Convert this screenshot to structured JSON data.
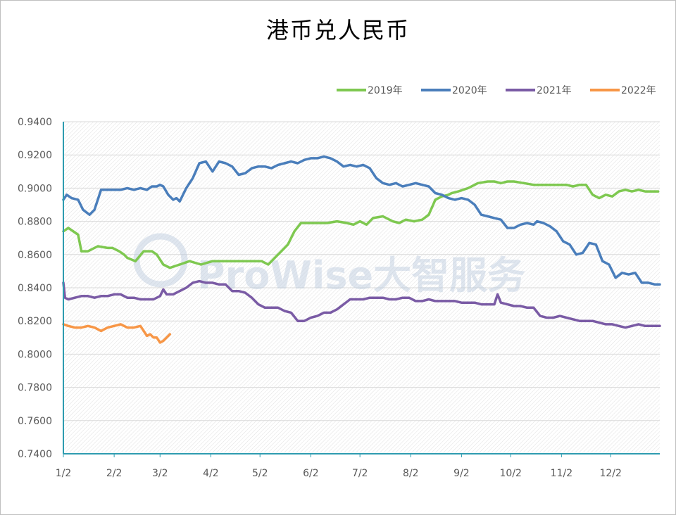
{
  "chart_data": {
    "type": "line",
    "title": "港币兑人民币",
    "xlabel": "",
    "ylabel": "",
    "ylim": [
      0.74,
      0.94
    ],
    "y_ticks": [
      "0.9400",
      "0.9200",
      "0.9000",
      "0.8800",
      "0.8600",
      "0.8400",
      "0.8200",
      "0.8000",
      "0.7800",
      "0.7600",
      "0.7400"
    ],
    "x_ticks": [
      "1/2",
      "2/2",
      "3/2",
      "4/2",
      "5/2",
      "6/2",
      "7/2",
      "8/2",
      "9/2",
      "10/2",
      "11/2",
      "12/2"
    ],
    "x_unit": "day of year",
    "x_range": [
      1,
      365
    ],
    "legend_position": "top-right",
    "grid": true,
    "watermark": "ProWise大智服务",
    "series": [
      {
        "name": "2019年",
        "color": "#7ec850",
        "x": [
          1,
          4,
          10,
          12,
          16,
          22,
          28,
          31,
          35,
          38,
          40,
          45,
          50,
          55,
          58,
          62,
          66,
          72,
          78,
          85,
          92,
          100,
          108,
          112,
          118,
          122,
          126,
          130,
          134,
          138,
          142,
          146,
          150,
          156,
          162,
          168,
          174,
          178,
          182,
          186,
          190,
          196,
          202,
          206,
          210,
          215,
          220,
          224,
          228,
          232,
          236,
          238,
          242,
          248,
          254,
          260,
          264,
          268,
          272,
          276,
          282,
          288,
          292,
          298,
          304,
          308,
          312,
          316,
          320,
          324,
          328,
          332,
          336,
          340,
          344,
          348,
          352,
          356,
          360,
          364
        ],
        "values": [
          0.874,
          0.876,
          0.872,
          0.862,
          0.862,
          0.865,
          0.864,
          0.864,
          0.862,
          0.86,
          0.858,
          0.856,
          0.862,
          0.862,
          0.86,
          0.854,
          0.852,
          0.854,
          0.856,
          0.854,
          0.856,
          0.856,
          0.856,
          0.856,
          0.856,
          0.856,
          0.854,
          0.858,
          0.862,
          0.866,
          0.874,
          0.879,
          0.879,
          0.879,
          0.879,
          0.88,
          0.879,
          0.878,
          0.88,
          0.878,
          0.882,
          0.883,
          0.88,
          0.879,
          0.881,
          0.88,
          0.881,
          0.884,
          0.893,
          0.895,
          0.896,
          0.897,
          0.898,
          0.9,
          0.903,
          0.904,
          0.904,
          0.903,
          0.904,
          0.904,
          0.903,
          0.902,
          0.902,
          0.902,
          0.902,
          0.902,
          0.901,
          0.902,
          0.902,
          0.896,
          0.894,
          0.896,
          0.895,
          0.898,
          0.899,
          0.898,
          0.899,
          0.898,
          0.898,
          0.898
        ]
      },
      {
        "name": "2020年",
        "color": "#4a7ebb",
        "x": [
          1,
          3,
          6,
          10,
          13,
          17,
          20,
          24,
          28,
          32,
          36,
          40,
          44,
          48,
          52,
          55,
          58,
          60,
          62,
          65,
          68,
          70,
          72,
          76,
          80,
          84,
          88,
          92,
          96,
          100,
          104,
          108,
          112,
          116,
          120,
          124,
          128,
          132,
          136,
          140,
          144,
          148,
          152,
          156,
          160,
          164,
          168,
          172,
          176,
          180,
          184,
          188,
          192,
          196,
          200,
          204,
          208,
          212,
          216,
          220,
          224,
          228,
          232,
          236,
          240,
          244,
          248,
          252,
          256,
          260,
          264,
          268,
          272,
          276,
          280,
          284,
          288,
          290,
          294,
          298,
          302,
          306,
          310,
          314,
          318,
          322,
          326,
          330,
          334,
          338,
          342,
          346,
          350,
          354,
          358,
          362,
          365
        ],
        "values": [
          0.893,
          0.896,
          0.894,
          0.893,
          0.887,
          0.884,
          0.887,
          0.899,
          0.899,
          0.899,
          0.899,
          0.9,
          0.899,
          0.9,
          0.899,
          0.901,
          0.901,
          0.902,
          0.901,
          0.896,
          0.893,
          0.894,
          0.892,
          0.9,
          0.906,
          0.915,
          0.916,
          0.91,
          0.916,
          0.915,
          0.913,
          0.908,
          0.909,
          0.912,
          0.913,
          0.913,
          0.912,
          0.914,
          0.915,
          0.916,
          0.915,
          0.917,
          0.918,
          0.918,
          0.919,
          0.918,
          0.916,
          0.913,
          0.914,
          0.913,
          0.914,
          0.912,
          0.906,
          0.903,
          0.902,
          0.903,
          0.901,
          0.902,
          0.903,
          0.902,
          0.901,
          0.897,
          0.896,
          0.894,
          0.893,
          0.894,
          0.893,
          0.89,
          0.884,
          0.883,
          0.882,
          0.881,
          0.876,
          0.876,
          0.878,
          0.879,
          0.878,
          0.88,
          0.879,
          0.877,
          0.874,
          0.868,
          0.866,
          0.86,
          0.861,
          0.867,
          0.866,
          0.856,
          0.854,
          0.846,
          0.849,
          0.848,
          0.849,
          0.843,
          0.843,
          0.842,
          0.842
        ]
      },
      {
        "name": "2021年",
        "color": "#7a5ba5",
        "x": [
          1,
          2,
          4,
          8,
          12,
          16,
          20,
          24,
          28,
          32,
          36,
          40,
          44,
          48,
          52,
          56,
          60,
          62,
          64,
          66,
          68,
          72,
          76,
          80,
          84,
          88,
          92,
          96,
          100,
          104,
          108,
          112,
          116,
          120,
          124,
          128,
          132,
          136,
          140,
          144,
          148,
          152,
          156,
          160,
          164,
          168,
          172,
          176,
          180,
          184,
          188,
          192,
          196,
          200,
          204,
          208,
          212,
          216,
          220,
          224,
          228,
          232,
          236,
          240,
          244,
          248,
          252,
          256,
          260,
          264,
          266,
          268,
          272,
          276,
          280,
          284,
          288,
          292,
          296,
          300,
          304,
          308,
          312,
          316,
          320,
          324,
          328,
          332,
          336,
          340,
          344,
          348,
          352,
          356,
          360,
          365
        ],
        "values": [
          0.843,
          0.834,
          0.833,
          0.834,
          0.835,
          0.835,
          0.834,
          0.835,
          0.835,
          0.836,
          0.836,
          0.834,
          0.834,
          0.833,
          0.833,
          0.833,
          0.835,
          0.839,
          0.836,
          0.836,
          0.836,
          0.838,
          0.84,
          0.843,
          0.844,
          0.843,
          0.843,
          0.842,
          0.842,
          0.838,
          0.838,
          0.837,
          0.834,
          0.83,
          0.828,
          0.828,
          0.828,
          0.826,
          0.825,
          0.82,
          0.82,
          0.822,
          0.823,
          0.825,
          0.825,
          0.827,
          0.83,
          0.833,
          0.833,
          0.833,
          0.834,
          0.834,
          0.834,
          0.833,
          0.833,
          0.834,
          0.834,
          0.832,
          0.832,
          0.833,
          0.832,
          0.832,
          0.832,
          0.832,
          0.831,
          0.831,
          0.831,
          0.83,
          0.83,
          0.83,
          0.836,
          0.831,
          0.83,
          0.829,
          0.829,
          0.828,
          0.828,
          0.823,
          0.822,
          0.822,
          0.823,
          0.822,
          0.821,
          0.82,
          0.82,
          0.82,
          0.819,
          0.818,
          0.818,
          0.817,
          0.816,
          0.817,
          0.818,
          0.817,
          0.817,
          0.817
        ]
      },
      {
        "name": "2022年",
        "color": "#f79646",
        "x": [
          1,
          4,
          8,
          12,
          16,
          20,
          24,
          28,
          32,
          36,
          40,
          44,
          48,
          52,
          54,
          56,
          58,
          60,
          62,
          64,
          66
        ],
        "values": [
          0.818,
          0.817,
          0.816,
          0.816,
          0.817,
          0.816,
          0.814,
          0.816,
          0.817,
          0.818,
          0.816,
          0.816,
          0.817,
          0.811,
          0.812,
          0.81,
          0.81,
          0.807,
          0.808,
          0.81,
          0.812
        ]
      }
    ]
  }
}
